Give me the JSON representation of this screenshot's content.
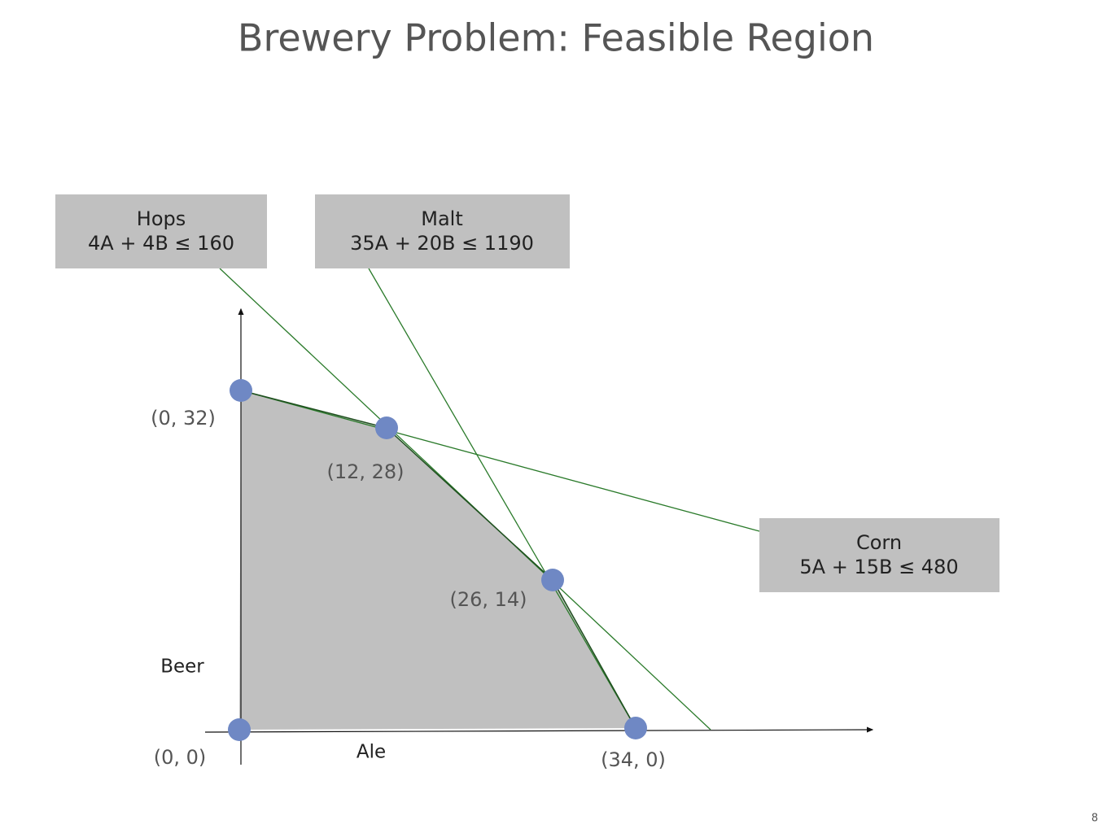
{
  "title": "Brewery Problem:  Feasible Region",
  "constraints": [
    {
      "name": "Hops",
      "expression": "4A + 4B ≤ 160"
    },
    {
      "name": "Malt",
      "expression": "35A + 20B ≤ 1190"
    },
    {
      "name": "Corn",
      "expression": "5A + 15B ≤ 480"
    }
  ],
  "vertices": [
    "(0, 32)",
    "(12, 28)",
    "(26, 14)",
    "(0, 0)",
    "(34, 0)"
  ],
  "axes": {
    "x": "Ale",
    "y": "Beer"
  },
  "page_number": "8"
}
